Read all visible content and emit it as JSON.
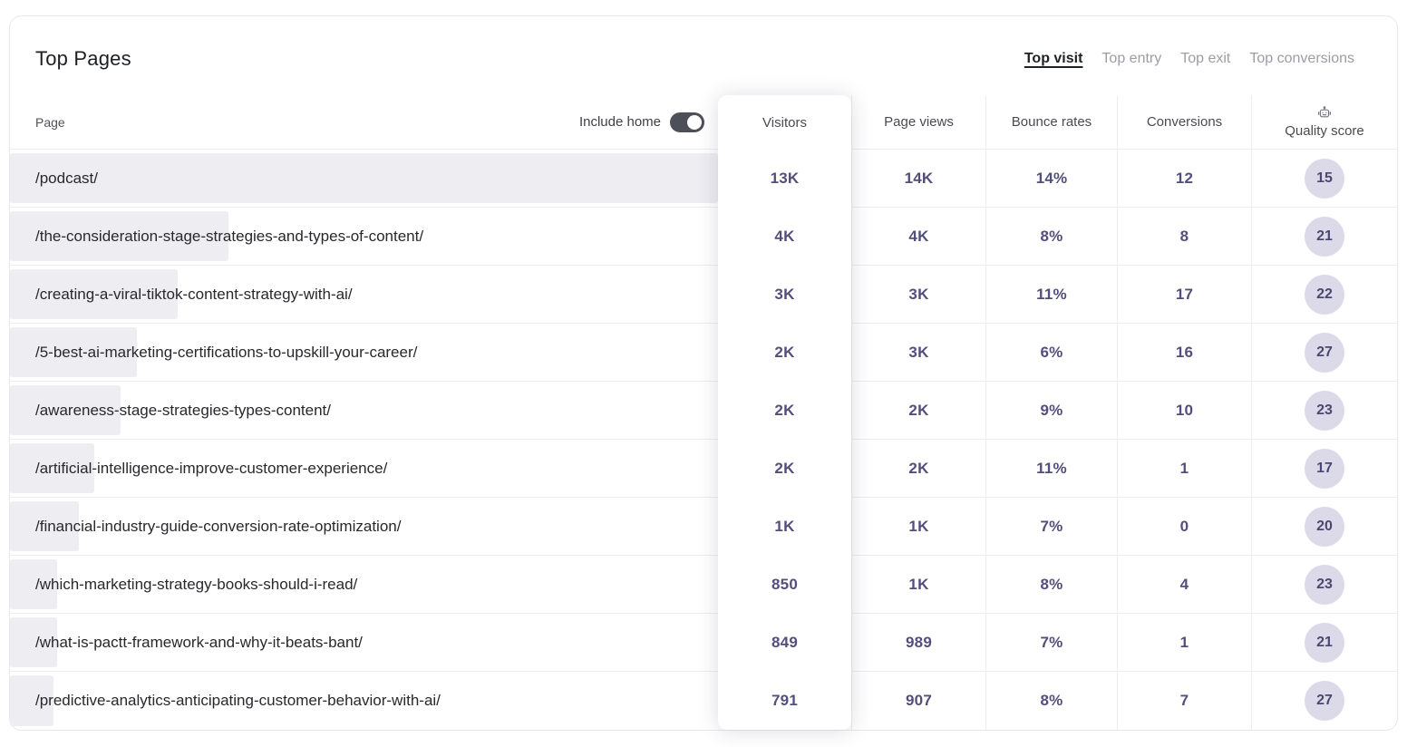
{
  "header": {
    "title": "Top Pages",
    "tabs": [
      {
        "label": "Top visit",
        "active": true
      },
      {
        "label": "Top entry",
        "active": false
      },
      {
        "label": "Top exit",
        "active": false
      },
      {
        "label": "Top conversions",
        "active": false
      }
    ]
  },
  "table": {
    "page_header": "Page",
    "include_home_label": "Include home",
    "include_home_on": true,
    "columns": [
      "Visitors",
      "Page views",
      "Bounce rates",
      "Conversions",
      "Quality score"
    ],
    "rows": [
      {
        "page": "/podcast/",
        "bar_pct": 100,
        "visitors": "13K",
        "page_views": "14K",
        "bounce_rate": "14%",
        "conversions": "12",
        "quality_score": "15"
      },
      {
        "page": "/the-consideration-stage-strategies-and-types-of-content/",
        "bar_pct": 30.8,
        "visitors": "4K",
        "page_views": "4K",
        "bounce_rate": "8%",
        "conversions": "8",
        "quality_score": "21"
      },
      {
        "page": "/creating-a-viral-tiktok-content-strategy-with-ai/",
        "bar_pct": 23.7,
        "visitors": "3K",
        "page_views": "3K",
        "bounce_rate": "11%",
        "conversions": "17",
        "quality_score": "22"
      },
      {
        "page": "/5-best-ai-marketing-certifications-to-upskill-your-career/",
        "bar_pct": 17.9,
        "visitors": "2K",
        "page_views": "3K",
        "bounce_rate": "6%",
        "conversions": "16",
        "quality_score": "27"
      },
      {
        "page": "/awareness-stage-strategies-types-content/",
        "bar_pct": 15.6,
        "visitors": "2K",
        "page_views": "2K",
        "bounce_rate": "9%",
        "conversions": "10",
        "quality_score": "23"
      },
      {
        "page": "/artificial-intelligence-improve-customer-experience/",
        "bar_pct": 11.9,
        "visitors": "2K",
        "page_views": "2K",
        "bounce_rate": "11%",
        "conversions": "1",
        "quality_score": "17"
      },
      {
        "page": "/financial-industry-guide-conversion-rate-optimization/",
        "bar_pct": 9.7,
        "visitors": "1K",
        "page_views": "1K",
        "bounce_rate": "7%",
        "conversions": "0",
        "quality_score": "20"
      },
      {
        "page": "/which-marketing-strategy-books-should-i-read/",
        "bar_pct": 6.6,
        "visitors": "850",
        "page_views": "1K",
        "bounce_rate": "8%",
        "conversions": "4",
        "quality_score": "23"
      },
      {
        "page": "/what-is-pactt-framework-and-why-it-beats-bant/",
        "bar_pct": 6.6,
        "visitors": "849",
        "page_views": "989",
        "bounce_rate": "7%",
        "conversions": "1",
        "quality_score": "21"
      },
      {
        "page": "/predictive-analytics-anticipating-customer-behavior-with-ai/",
        "bar_pct": 6.1,
        "visitors": "791",
        "page_views": "907",
        "bounce_rate": "8%",
        "conversions": "7",
        "quality_score": "27"
      }
    ]
  },
  "icons": {
    "quality_score": "robot-icon"
  },
  "colors": {
    "value_text": "#534f7d",
    "badge_bg": "#dcdae8",
    "badge_text": "#4a4775",
    "bar_fill": "#ededf2",
    "toggle_on": "#4d5058"
  }
}
